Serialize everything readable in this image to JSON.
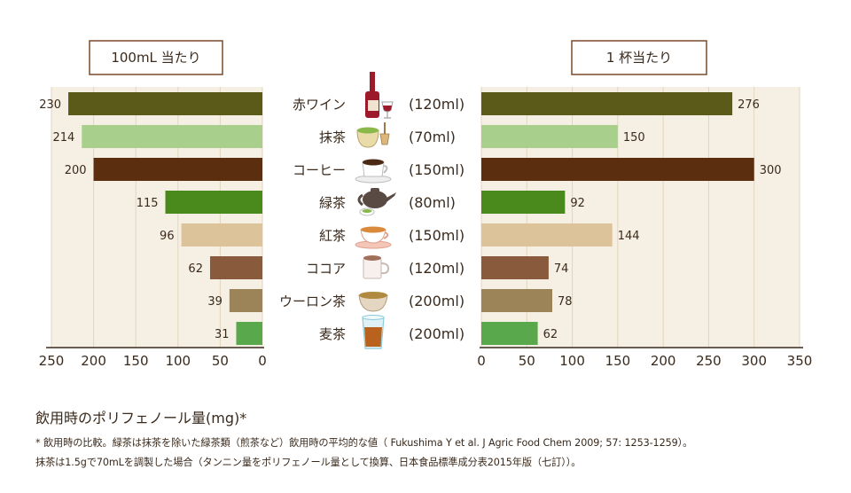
{
  "chart_data": [
    {
      "type": "bar",
      "orientation": "horizontal",
      "direction": "right-to-left",
      "title": "100mL 当たり",
      "categories": [
        "赤ワイン",
        "抹茶",
        "コーヒー",
        "緑茶",
        "紅茶",
        "ココア",
        "ウーロン茶",
        "麦茶"
      ],
      "values": [
        230,
        214,
        200,
        115,
        96,
        62,
        39,
        31
      ],
      "xlim": [
        0,
        250
      ],
      "ticks": [
        250,
        200,
        150,
        100,
        50,
        0
      ],
      "grid": true
    },
    {
      "type": "bar",
      "orientation": "horizontal",
      "direction": "left-to-right",
      "title": "1 杯当たり",
      "categories": [
        "赤ワイン",
        "抹茶",
        "コーヒー",
        "緑茶",
        "紅茶",
        "ココア",
        "ウーロン茶",
        "麦茶"
      ],
      "values": [
        276,
        150,
        300,
        92,
        144,
        74,
        78,
        62
      ],
      "xlim": [
        0,
        350
      ],
      "ticks": [
        0,
        50,
        100,
        150,
        200,
        250,
        300,
        350
      ],
      "grid": true
    }
  ],
  "drinks": [
    {
      "name": "赤ワイン",
      "volume": "(120ml)",
      "color": "#5c5a18",
      "icon": "wine-bottle-icon"
    },
    {
      "name": "抹茶",
      "volume": "(70ml)",
      "color": "#a8cf8c",
      "icon": "matcha-bowl-icon"
    },
    {
      "name": "コーヒー",
      "volume": "(150ml)",
      "color": "#5c2e10",
      "icon": "coffee-cup-icon"
    },
    {
      "name": "緑茶",
      "volume": "(80ml)",
      "color": "#4a8a1c",
      "icon": "teapot-icon"
    },
    {
      "name": "紅茶",
      "volume": "(150ml)",
      "color": "#dcc39a",
      "icon": "teacup-icon"
    },
    {
      "name": "ココア",
      "volume": "(120ml)",
      "color": "#8a5a3c",
      "icon": "cocoa-mug-icon"
    },
    {
      "name": "ウーロン茶",
      "volume": "(200ml)",
      "color": "#9c8458",
      "icon": "oolong-bowl-icon"
    },
    {
      "name": "麦茶",
      "volume": "(200ml)",
      "color": "#5aa84c",
      "icon": "barley-tea-glass-icon"
    }
  ],
  "caption": "飲用時のポリフェノール量(mg)*",
  "notes": [
    "* 飲用時の比較。緑茶は抹茶を除いた緑茶類（煎茶など）飲用時の平均的な値（ Fukushima Y et al. J Agric Food Chem 2009; 57: 1253-1259）。",
    "抹茶は1.5gで70mLを調製した場合（タンニン量をポリフェノール量として換算、日本食品標準成分表2015年版（七訂））。"
  ]
}
